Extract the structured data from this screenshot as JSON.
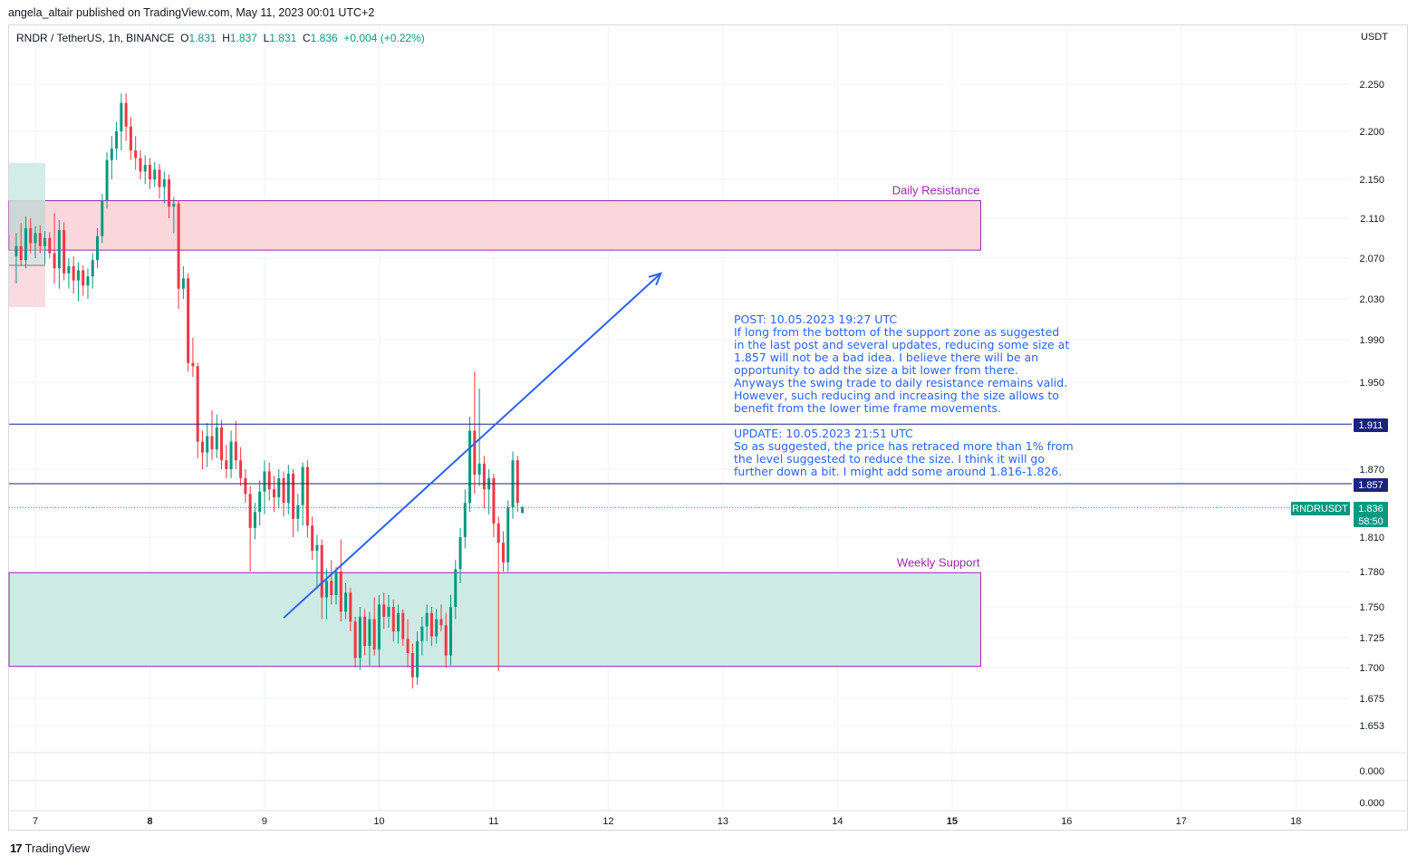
{
  "header": {
    "published_line": "angela_altair published on TradingView.com, May 11, 2023 00:01 UTC+2"
  },
  "legend": {
    "symbol": "RNDR / TetherUS, 1h, BINANCE",
    "o_label": "O",
    "o_value": "1.831",
    "h_label": "H",
    "h_value": "1.837",
    "l_label": "L",
    "l_value": "1.831",
    "c_label": "C",
    "c_value": "1.836",
    "change": "+0.004 (+0.22%)"
  },
  "price_axis": {
    "unit": "USDT",
    "ticks": [
      "2.250",
      "2.200",
      "2.150",
      "2.110",
      "2.070",
      "2.030",
      "1.990",
      "1.950",
      "1.870",
      "1.810",
      "1.780",
      "1.750",
      "1.725",
      "1.700",
      "1.675",
      "1.653"
    ],
    "lower_pane_ticks": [
      "0.000",
      "0.000"
    ]
  },
  "time_axis": {
    "ticks": [
      {
        "label": "7",
        "bold": false
      },
      {
        "label": "8",
        "bold": true
      },
      {
        "label": "9",
        "bold": false
      },
      {
        "label": "10",
        "bold": false
      },
      {
        "label": "11",
        "bold": false
      },
      {
        "label": "12",
        "bold": false
      },
      {
        "label": "13",
        "bold": false
      },
      {
        "label": "14",
        "bold": false
      },
      {
        "label": "15",
        "bold": true
      },
      {
        "label": "16",
        "bold": false
      },
      {
        "label": "17",
        "bold": false
      },
      {
        "label": "18",
        "bold": false
      }
    ]
  },
  "zones": {
    "resistance_label": "Daily Resistance",
    "support_label": "Weekly Support"
  },
  "levels": {
    "upper": "1.911",
    "lower": "1.857"
  },
  "last_price": {
    "ticker": "RNDRUSDT",
    "price": "1.836",
    "countdown": "58:50"
  },
  "notes": {
    "post": [
      "POST: 10.05.2023 19:27 UTC",
      "If long from the bottom of the support zone as suggested",
      "in the last post and several updates, reducing some size at",
      "1.857 will not be a bad idea. I believe there will be an",
      "opportunity to add the size a bit lower from there.",
      "Anyways the swing trade to daily resistance remains valid.",
      "However, such reducing and increasing the size allows to",
      "benefit from the lower time frame movements."
    ],
    "update": [
      "UPDATE: 10.05.2023 21:51 UTC",
      "So as suggested, the price has retraced more than 1% from",
      "the level suggested to reduce the size. I think it will go",
      "further down a bit. I might add some around 1.816-1.826."
    ]
  },
  "footer": {
    "brand": "TradingView",
    "logo": "17"
  },
  "colors": {
    "up": "#089981",
    "down": "#f23645",
    "level": "#1a237e",
    "arrow": "#2962ff",
    "zone_border": "#9c27b0",
    "resistance_fill": "#fad7db",
    "support_fill": "#cdebe4"
  },
  "chart_data": {
    "type": "candlestick",
    "symbol": "RNDR / TetherUS",
    "interval": "1h",
    "x_unit": "hours from May 7 00:00",
    "y_unit": "USDT",
    "ylim": [
      1.63,
      2.29
    ],
    "zones": [
      {
        "name": "Daily Resistance",
        "x_start": -6,
        "x_end": 198,
        "y_low": 2.078,
        "y_high": 2.128
      },
      {
        "name": "Weekly Support",
        "x_start": -6,
        "x_end": 198,
        "y_low": 1.701,
        "y_high": 1.779
      }
    ],
    "horizontal_lines": [
      1.911,
      1.857
    ],
    "arrow": {
      "from": {
        "x": 52,
        "y": 1.741
      },
      "to": {
        "x": 131,
        "y": 2.055
      }
    },
    "candles": [
      {
        "t": -4,
        "o": 2.072,
        "h": 2.095,
        "l": 2.045,
        "c": 2.082
      },
      {
        "t": -3,
        "o": 2.082,
        "h": 2.105,
        "l": 2.062,
        "c": 2.068
      },
      {
        "t": -2,
        "o": 2.068,
        "h": 2.112,
        "l": 2.06,
        "c": 2.1
      },
      {
        "t": -1,
        "o": 2.1,
        "h": 2.11,
        "l": 2.075,
        "c": 2.085
      },
      {
        "t": 0,
        "o": 2.085,
        "h": 2.102,
        "l": 2.07,
        "c": 2.095
      },
      {
        "t": 1,
        "o": 2.095,
        "h": 2.103,
        "l": 2.075,
        "c": 2.082
      },
      {
        "t": 2,
        "o": 2.082,
        "h": 2.097,
        "l": 2.064,
        "c": 2.09
      },
      {
        "t": 3,
        "o": 2.09,
        "h": 2.096,
        "l": 2.07,
        "c": 2.075
      },
      {
        "t": 4,
        "o": 2.075,
        "h": 2.115,
        "l": 2.045,
        "c": 2.06
      },
      {
        "t": 5,
        "o": 2.06,
        "h": 2.108,
        "l": 2.04,
        "c": 2.098
      },
      {
        "t": 6,
        "o": 2.098,
        "h": 2.106,
        "l": 2.048,
        "c": 2.055
      },
      {
        "t": 7,
        "o": 2.055,
        "h": 2.07,
        "l": 2.04,
        "c": 2.062
      },
      {
        "t": 8,
        "o": 2.062,
        "h": 2.072,
        "l": 2.035,
        "c": 2.048
      },
      {
        "t": 9,
        "o": 2.048,
        "h": 2.066,
        "l": 2.028,
        "c": 2.058
      },
      {
        "t": 10,
        "o": 2.058,
        "h": 2.063,
        "l": 2.033,
        "c": 2.043
      },
      {
        "t": 11,
        "o": 2.043,
        "h": 2.06,
        "l": 2.03,
        "c": 2.052
      },
      {
        "t": 12,
        "o": 2.052,
        "h": 2.075,
        "l": 2.04,
        "c": 2.068
      },
      {
        "t": 13,
        "o": 2.068,
        "h": 2.1,
        "l": 2.06,
        "c": 2.092
      },
      {
        "t": 14,
        "o": 2.092,
        "h": 2.135,
        "l": 2.085,
        "c": 2.128
      },
      {
        "t": 15,
        "o": 2.128,
        "h": 2.178,
        "l": 2.12,
        "c": 2.17
      },
      {
        "t": 16,
        "o": 2.17,
        "h": 2.195,
        "l": 2.15,
        "c": 2.182
      },
      {
        "t": 17,
        "o": 2.182,
        "h": 2.21,
        "l": 2.17,
        "c": 2.2
      },
      {
        "t": 18,
        "o": 2.2,
        "h": 2.24,
        "l": 2.18,
        "c": 2.23
      },
      {
        "t": 19,
        "o": 2.23,
        "h": 2.24,
        "l": 2.19,
        "c": 2.205
      },
      {
        "t": 20,
        "o": 2.205,
        "h": 2.215,
        "l": 2.17,
        "c": 2.18
      },
      {
        "t": 21,
        "o": 2.18,
        "h": 2.195,
        "l": 2.16,
        "c": 2.172
      },
      {
        "t": 22,
        "o": 2.172,
        "h": 2.18,
        "l": 2.15,
        "c": 2.158
      },
      {
        "t": 23,
        "o": 2.158,
        "h": 2.175,
        "l": 2.145,
        "c": 2.165
      },
      {
        "t": 24,
        "o": 2.165,
        "h": 2.172,
        "l": 2.14,
        "c": 2.15
      },
      {
        "t": 25,
        "o": 2.15,
        "h": 2.168,
        "l": 2.142,
        "c": 2.16
      },
      {
        "t": 26,
        "o": 2.16,
        "h": 2.166,
        "l": 2.13,
        "c": 2.142
      },
      {
        "t": 27,
        "o": 2.142,
        "h": 2.158,
        "l": 2.125,
        "c": 2.15
      },
      {
        "t": 28,
        "o": 2.15,
        "h": 2.155,
        "l": 2.11,
        "c": 2.122
      },
      {
        "t": 29,
        "o": 2.122,
        "h": 2.132,
        "l": 2.095,
        "c": 2.125
      },
      {
        "t": 30,
        "o": 2.125,
        "h": 2.128,
        "l": 2.02,
        "c": 2.04
      },
      {
        "t": 31,
        "o": 2.04,
        "h": 2.062,
        "l": 2.03,
        "c": 2.05
      },
      {
        "t": 32,
        "o": 2.05,
        "h": 2.055,
        "l": 1.96,
        "c": 1.968
      },
      {
        "t": 33,
        "o": 1.968,
        "h": 1.992,
        "l": 1.955,
        "c": 1.965
      },
      {
        "t": 34,
        "o": 1.965,
        "h": 1.968,
        "l": 1.88,
        "c": 1.895
      },
      {
        "t": 35,
        "o": 1.895,
        "h": 1.905,
        "l": 1.87,
        "c": 1.885
      },
      {
        "t": 36,
        "o": 1.885,
        "h": 1.912,
        "l": 1.872,
        "c": 1.9
      },
      {
        "t": 37,
        "o": 1.9,
        "h": 1.924,
        "l": 1.878,
        "c": 1.888
      },
      {
        "t": 38,
        "o": 1.888,
        "h": 1.92,
        "l": 1.88,
        "c": 1.908
      },
      {
        "t": 39,
        "o": 1.908,
        "h": 1.915,
        "l": 1.87,
        "c": 1.878
      },
      {
        "t": 40,
        "o": 1.878,
        "h": 1.892,
        "l": 1.862,
        "c": 1.87
      },
      {
        "t": 41,
        "o": 1.87,
        "h": 1.905,
        "l": 1.862,
        "c": 1.895
      },
      {
        "t": 42,
        "o": 1.895,
        "h": 1.914,
        "l": 1.87,
        "c": 1.878
      },
      {
        "t": 43,
        "o": 1.878,
        "h": 1.89,
        "l": 1.855,
        "c": 1.862
      },
      {
        "t": 44,
        "o": 1.862,
        "h": 1.87,
        "l": 1.84,
        "c": 1.848
      },
      {
        "t": 45,
        "o": 1.848,
        "h": 1.855,
        "l": 1.78,
        "c": 1.818
      },
      {
        "t": 46,
        "o": 1.818,
        "h": 1.84,
        "l": 1.808,
        "c": 1.832
      },
      {
        "t": 47,
        "o": 1.832,
        "h": 1.86,
        "l": 1.82,
        "c": 1.85
      },
      {
        "t": 48,
        "o": 1.85,
        "h": 1.878,
        "l": 1.83,
        "c": 1.868
      },
      {
        "t": 49,
        "o": 1.868,
        "h": 1.876,
        "l": 1.842,
        "c": 1.852
      },
      {
        "t": 50,
        "o": 1.852,
        "h": 1.864,
        "l": 1.832,
        "c": 1.845
      },
      {
        "t": 51,
        "o": 1.845,
        "h": 1.87,
        "l": 1.835,
        "c": 1.862
      },
      {
        "t": 52,
        "o": 1.862,
        "h": 1.868,
        "l": 1.828,
        "c": 1.84
      },
      {
        "t": 53,
        "o": 1.84,
        "h": 1.874,
        "l": 1.83,
        "c": 1.866
      },
      {
        "t": 54,
        "o": 1.866,
        "h": 1.87,
        "l": 1.81,
        "c": 1.826
      },
      {
        "t": 55,
        "o": 1.826,
        "h": 1.848,
        "l": 1.815,
        "c": 1.838
      },
      {
        "t": 56,
        "o": 1.838,
        "h": 1.876,
        "l": 1.82,
        "c": 1.872
      },
      {
        "t": 57,
        "o": 1.872,
        "h": 1.878,
        "l": 1.81,
        "c": 1.82
      },
      {
        "t": 58,
        "o": 1.82,
        "h": 1.828,
        "l": 1.79,
        "c": 1.798
      },
      {
        "t": 59,
        "o": 1.798,
        "h": 1.812,
        "l": 1.765,
        "c": 1.803
      },
      {
        "t": 60,
        "o": 1.803,
        "h": 1.808,
        "l": 1.74,
        "c": 1.758
      },
      {
        "t": 61,
        "o": 1.758,
        "h": 1.782,
        "l": 1.74,
        "c": 1.772
      },
      {
        "t": 62,
        "o": 1.772,
        "h": 1.79,
        "l": 1.752,
        "c": 1.76
      },
      {
        "t": 63,
        "o": 1.76,
        "h": 1.784,
        "l": 1.752,
        "c": 1.78
      },
      {
        "t": 64,
        "o": 1.78,
        "h": 1.808,
        "l": 1.738,
        "c": 1.746
      },
      {
        "t": 65,
        "o": 1.746,
        "h": 1.77,
        "l": 1.74,
        "c": 1.762
      },
      {
        "t": 66,
        "o": 1.762,
        "h": 1.766,
        "l": 1.73,
        "c": 1.738
      },
      {
        "t": 67,
        "o": 1.738,
        "h": 1.742,
        "l": 1.7,
        "c": 1.708
      },
      {
        "t": 68,
        "o": 1.708,
        "h": 1.75,
        "l": 1.698,
        "c": 1.742
      },
      {
        "t": 69,
        "o": 1.742,
        "h": 1.748,
        "l": 1.71,
        "c": 1.718
      },
      {
        "t": 70,
        "o": 1.718,
        "h": 1.746,
        "l": 1.702,
        "c": 1.74
      },
      {
        "t": 71,
        "o": 1.74,
        "h": 1.758,
        "l": 1.71,
        "c": 1.715
      },
      {
        "t": 72,
        "o": 1.715,
        "h": 1.76,
        "l": 1.7,
        "c": 1.752
      },
      {
        "t": 73,
        "o": 1.752,
        "h": 1.762,
        "l": 1.732,
        "c": 1.742
      },
      {
        "t": 74,
        "o": 1.742,
        "h": 1.76,
        "l": 1.733,
        "c": 1.75
      },
      {
        "t": 75,
        "o": 1.75,
        "h": 1.756,
        "l": 1.722,
        "c": 1.73
      },
      {
        "t": 76,
        "o": 1.73,
        "h": 1.752,
        "l": 1.72,
        "c": 1.745
      },
      {
        "t": 77,
        "o": 1.745,
        "h": 1.748,
        "l": 1.718,
        "c": 1.724
      },
      {
        "t": 78,
        "o": 1.724,
        "h": 1.74,
        "l": 1.7,
        "c": 1.712
      },
      {
        "t": 79,
        "o": 1.712,
        "h": 1.72,
        "l": 1.683,
        "c": 1.692
      },
      {
        "t": 80,
        "o": 1.692,
        "h": 1.73,
        "l": 1.686,
        "c": 1.722
      },
      {
        "t": 81,
        "o": 1.722,
        "h": 1.742,
        "l": 1.71,
        "c": 1.734
      },
      {
        "t": 82,
        "o": 1.734,
        "h": 1.752,
        "l": 1.722,
        "c": 1.745
      },
      {
        "t": 83,
        "o": 1.745,
        "h": 1.75,
        "l": 1.718,
        "c": 1.726
      },
      {
        "t": 84,
        "o": 1.726,
        "h": 1.748,
        "l": 1.72,
        "c": 1.74
      },
      {
        "t": 85,
        "o": 1.74,
        "h": 1.752,
        "l": 1.73,
        "c": 1.735
      },
      {
        "t": 86,
        "o": 1.735,
        "h": 1.745,
        "l": 1.7,
        "c": 1.71
      },
      {
        "t": 87,
        "o": 1.71,
        "h": 1.76,
        "l": 1.702,
        "c": 1.75
      },
      {
        "t": 88,
        "o": 1.75,
        "h": 1.79,
        "l": 1.74,
        "c": 1.782
      },
      {
        "t": 89,
        "o": 1.782,
        "h": 1.818,
        "l": 1.77,
        "c": 1.81
      },
      {
        "t": 90,
        "o": 1.81,
        "h": 1.852,
        "l": 1.8,
        "c": 1.84
      },
      {
        "t": 91,
        "o": 1.84,
        "h": 1.918,
        "l": 1.832,
        "c": 1.905
      },
      {
        "t": 92,
        "o": 1.905,
        "h": 1.96,
        "l": 1.848,
        "c": 1.865
      },
      {
        "t": 93,
        "o": 1.865,
        "h": 1.944,
        "l": 1.855,
        "c": 1.875
      },
      {
        "t": 94,
        "o": 1.875,
        "h": 1.882,
        "l": 1.835,
        "c": 1.852
      },
      {
        "t": 95,
        "o": 1.852,
        "h": 1.87,
        "l": 1.83,
        "c": 1.862
      },
      {
        "t": 96,
        "o": 1.862,
        "h": 1.866,
        "l": 1.81,
        "c": 1.822
      },
      {
        "t": 97,
        "o": 1.822,
        "h": 1.828,
        "l": 1.697,
        "c": 1.805
      },
      {
        "t": 98,
        "o": 1.805,
        "h": 1.815,
        "l": 1.78,
        "c": 1.788
      },
      {
        "t": 99,
        "o": 1.788,
        "h": 1.842,
        "l": 1.78,
        "c": 1.836
      },
      {
        "t": 100,
        "o": 1.836,
        "h": 1.886,
        "l": 1.826,
        "c": 1.878
      },
      {
        "t": 101,
        "o": 1.878,
        "h": 1.882,
        "l": 1.832,
        "c": 1.84
      },
      {
        "t": 102,
        "o": 1.831,
        "h": 1.837,
        "l": 1.831,
        "c": 1.836
      }
    ]
  }
}
